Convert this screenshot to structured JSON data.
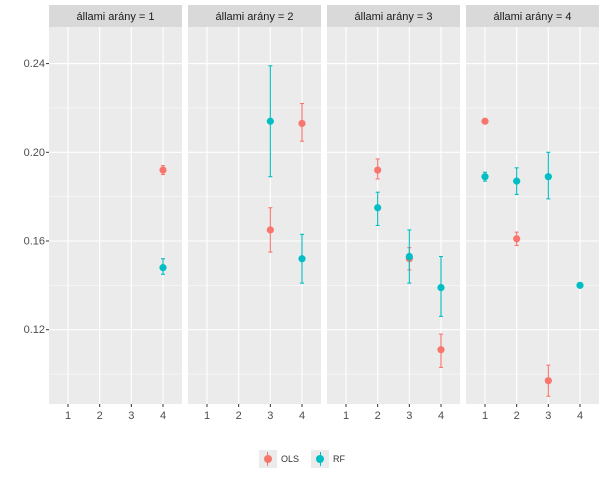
{
  "chart_data": {
    "type": "scatter",
    "facet_label_prefix": "állami arány = ",
    "facets": [
      "1",
      "2",
      "3",
      "4"
    ],
    "x_ticks": [
      "1",
      "2",
      "3",
      "4"
    ],
    "y_ticks": [
      0.12,
      0.16,
      0.2,
      0.24
    ],
    "y_tick_labels": [
      "0.12",
      "0.16",
      "0.20",
      "0.24"
    ],
    "ylim": [
      0.0865,
      0.2565
    ],
    "xlim": [
      0.4,
      4.6
    ],
    "grid": true,
    "legend_position": "bottom",
    "colors": {
      "OLS": "#F8766D",
      "RF": "#00BFC4",
      "panel_bg": "#EBEBEB",
      "strip_bg": "#D9D9D9",
      "grid": "#FFFFFF",
      "text": "#4D4D4D"
    },
    "series": [
      {
        "name": "OLS",
        "points": [
          {
            "facet": "1",
            "x": 4,
            "y": 0.192,
            "ymin": 0.19,
            "ymax": 0.194
          },
          {
            "facet": "2",
            "x": 3,
            "y": 0.165,
            "ymin": 0.155,
            "ymax": 0.175
          },
          {
            "facet": "2",
            "x": 4,
            "y": 0.213,
            "ymin": 0.205,
            "ymax": 0.222
          },
          {
            "facet": "3",
            "x": 2,
            "y": 0.192,
            "ymin": 0.188,
            "ymax": 0.197
          },
          {
            "facet": "3",
            "x": 3,
            "y": 0.152,
            "ymin": 0.147,
            "ymax": 0.157
          },
          {
            "facet": "3",
            "x": 4,
            "y": 0.111,
            "ymin": 0.103,
            "ymax": 0.118
          },
          {
            "facet": "4",
            "x": 1,
            "y": 0.214,
            "ymin": 0.213,
            "ymax": 0.215
          },
          {
            "facet": "4",
            "x": 2,
            "y": 0.161,
            "ymin": 0.158,
            "ymax": 0.164
          },
          {
            "facet": "4",
            "x": 3,
            "y": 0.097,
            "ymin": 0.09,
            "ymax": 0.104
          }
        ]
      },
      {
        "name": "RF",
        "points": [
          {
            "facet": "1",
            "x": 4,
            "y": 0.148,
            "ymin": 0.145,
            "ymax": 0.152
          },
          {
            "facet": "2",
            "x": 3,
            "y": 0.214,
            "ymin": 0.189,
            "ymax": 0.239
          },
          {
            "facet": "2",
            "x": 4,
            "y": 0.152,
            "ymin": 0.141,
            "ymax": 0.163
          },
          {
            "facet": "3",
            "x": 2,
            "y": 0.175,
            "ymin": 0.167,
            "ymax": 0.182
          },
          {
            "facet": "3",
            "x": 3,
            "y": 0.153,
            "ymin": 0.141,
            "ymax": 0.165
          },
          {
            "facet": "3",
            "x": 4,
            "y": 0.139,
            "ymin": 0.126,
            "ymax": 0.153
          },
          {
            "facet": "4",
            "x": 1,
            "y": 0.189,
            "ymin": 0.187,
            "ymax": 0.191
          },
          {
            "facet": "4",
            "x": 2,
            "y": 0.187,
            "ymin": 0.181,
            "ymax": 0.193
          },
          {
            "facet": "4",
            "x": 3,
            "y": 0.189,
            "ymin": 0.179,
            "ymax": 0.2
          },
          {
            "facet": "4",
            "x": 4,
            "y": 0.14,
            "ymin": 0.139,
            "ymax": 0.141
          }
        ]
      }
    ]
  }
}
